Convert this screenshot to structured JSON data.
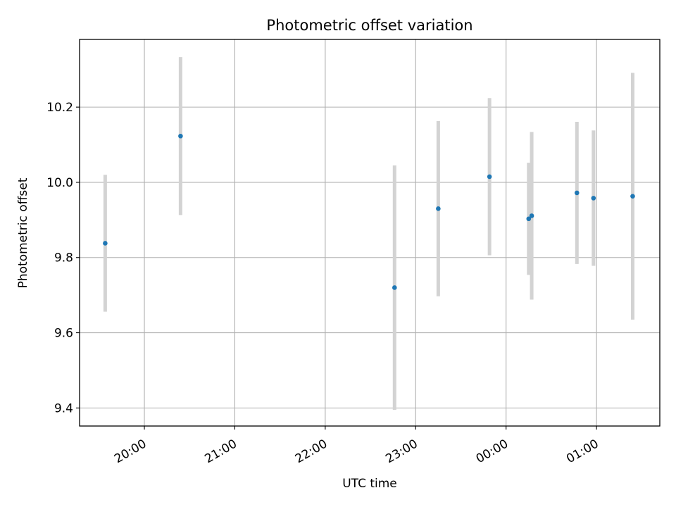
{
  "chart_data": {
    "type": "scatter",
    "title": "Photometric offset variation",
    "xlabel": "UTC time",
    "ylabel": "Photometric offset",
    "x_is_time": true,
    "xlim": [
      "19:17",
      "01:42"
    ],
    "ylim": [
      9.352,
      10.38
    ],
    "x_ticks": [
      "20:00",
      "21:00",
      "22:00",
      "23:00",
      "00:00",
      "01:00"
    ],
    "y_ticks": [
      9.4,
      9.6,
      9.8,
      10.0,
      10.2
    ],
    "y_tick_labels": [
      "9.4",
      "9.6",
      "9.8",
      "10.0",
      "10.2"
    ],
    "grid": true,
    "legend": "none",
    "colors": {
      "points": "#1f77b4",
      "errorbars": "#d3d3d3",
      "grid": "#b0b0b0"
    },
    "series": [
      {
        "x": [
          "19:34",
          "20:24",
          "22:46",
          "23:15",
          "23:49",
          "00:15",
          "00:17",
          "00:47",
          "00:58",
          "01:24"
        ],
        "y": [
          9.838,
          10.123,
          9.72,
          9.93,
          10.015,
          9.903,
          9.911,
          9.972,
          9.958,
          9.963
        ],
        "yerr": [
          0.182,
          0.21,
          0.325,
          0.233,
          0.209,
          0.149,
          0.223,
          0.189,
          0.18,
          0.328
        ]
      }
    ]
  }
}
